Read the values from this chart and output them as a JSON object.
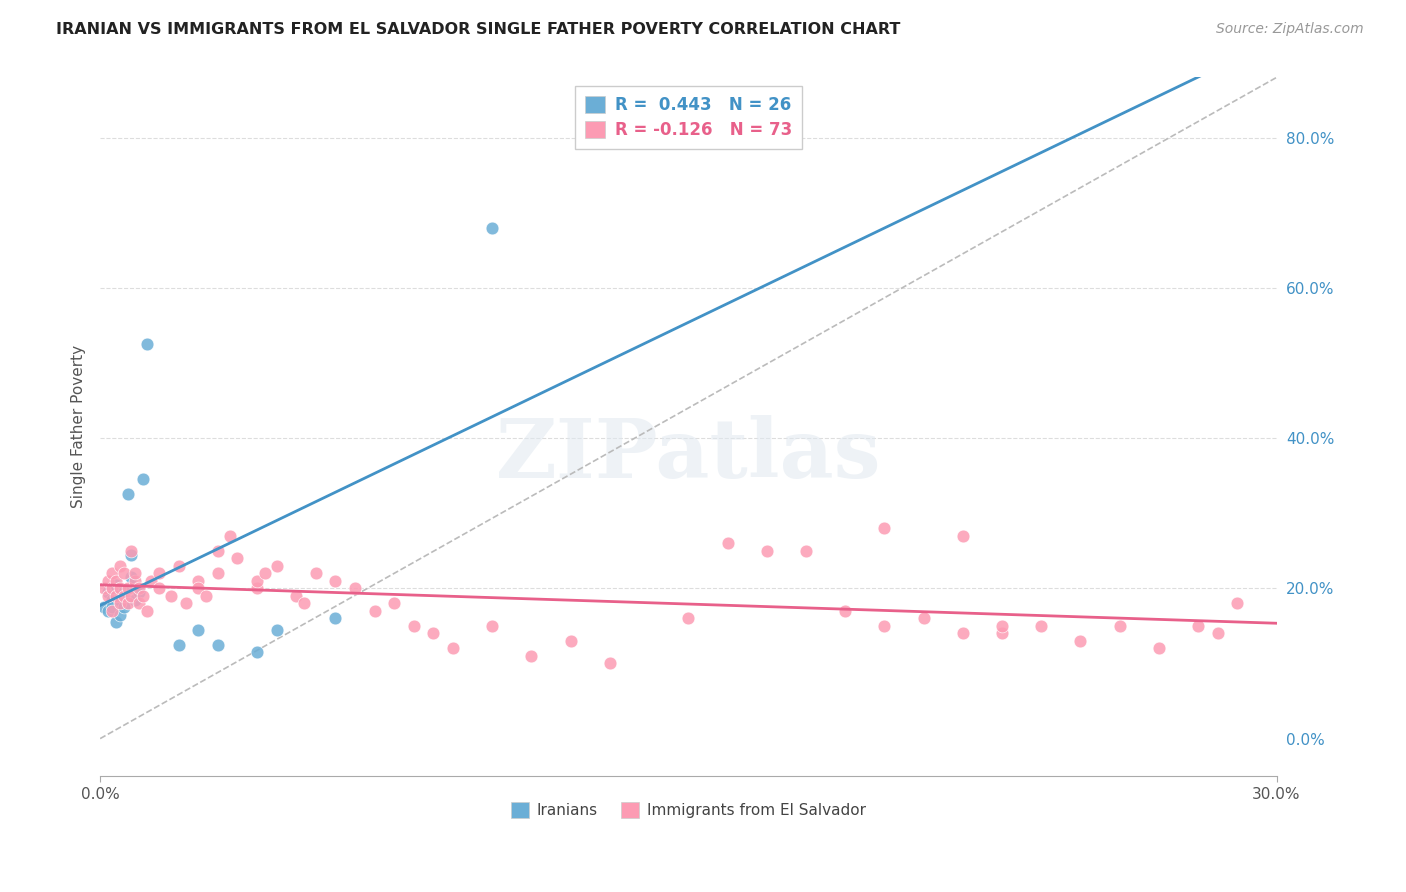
{
  "title": "IRANIAN VS IMMIGRANTS FROM EL SALVADOR SINGLE FATHER POVERTY CORRELATION CHART",
  "source": "Source: ZipAtlas.com",
  "ylabel": "Single Father Poverty",
  "right_ytick_vals": [
    0.0,
    0.2,
    0.4,
    0.6,
    0.8
  ],
  "legend_label1": "Iranians",
  "legend_label2": "Immigrants from El Salvador",
  "color_blue": "#6baed6",
  "color_pink": "#fc9bb3",
  "color_line_blue": "#4292c6",
  "color_line_pink": "#e8608a",
  "color_dashed": "#bbbbbb",
  "watermark_text": "ZIPatlas",
  "xmin": 0.0,
  "xmax": 0.3,
  "ymin": -0.05,
  "ymax": 0.88,
  "iranians_x": [
    0.001,
    0.002,
    0.002,
    0.003,
    0.003,
    0.004,
    0.004,
    0.005,
    0.005,
    0.005,
    0.006,
    0.006,
    0.007,
    0.008,
    0.008,
    0.009,
    0.01,
    0.011,
    0.012,
    0.02,
    0.025,
    0.03,
    0.04,
    0.045,
    0.06,
    0.1
  ],
  "iranians_y": [
    0.175,
    0.195,
    0.17,
    0.185,
    0.175,
    0.205,
    0.155,
    0.18,
    0.185,
    0.165,
    0.195,
    0.175,
    0.325,
    0.245,
    0.215,
    0.185,
    0.195,
    0.345,
    0.525,
    0.125,
    0.145,
    0.125,
    0.115,
    0.145,
    0.16,
    0.68
  ],
  "salvador_x": [
    0.001,
    0.002,
    0.002,
    0.003,
    0.003,
    0.003,
    0.004,
    0.004,
    0.005,
    0.005,
    0.005,
    0.006,
    0.006,
    0.007,
    0.007,
    0.008,
    0.008,
    0.009,
    0.009,
    0.01,
    0.01,
    0.011,
    0.012,
    0.013,
    0.015,
    0.015,
    0.018,
    0.02,
    0.022,
    0.025,
    0.025,
    0.027,
    0.03,
    0.03,
    0.033,
    0.035,
    0.04,
    0.04,
    0.042,
    0.045,
    0.05,
    0.052,
    0.055,
    0.06,
    0.065,
    0.07,
    0.075,
    0.08,
    0.085,
    0.09,
    0.1,
    0.11,
    0.12,
    0.13,
    0.15,
    0.16,
    0.17,
    0.18,
    0.19,
    0.2,
    0.21,
    0.22,
    0.23,
    0.24,
    0.25,
    0.26,
    0.27,
    0.28,
    0.285,
    0.2,
    0.22,
    0.23,
    0.29
  ],
  "salvador_y": [
    0.2,
    0.19,
    0.21,
    0.2,
    0.17,
    0.22,
    0.19,
    0.21,
    0.18,
    0.2,
    0.23,
    0.19,
    0.22,
    0.2,
    0.18,
    0.25,
    0.19,
    0.21,
    0.22,
    0.2,
    0.18,
    0.19,
    0.17,
    0.21,
    0.22,
    0.2,
    0.19,
    0.23,
    0.18,
    0.21,
    0.2,
    0.19,
    0.25,
    0.22,
    0.27,
    0.24,
    0.2,
    0.21,
    0.22,
    0.23,
    0.19,
    0.18,
    0.22,
    0.21,
    0.2,
    0.17,
    0.18,
    0.15,
    0.14,
    0.12,
    0.15,
    0.11,
    0.13,
    0.1,
    0.16,
    0.26,
    0.25,
    0.25,
    0.17,
    0.15,
    0.16,
    0.14,
    0.14,
    0.15,
    0.13,
    0.15,
    0.12,
    0.15,
    0.14,
    0.28,
    0.27,
    0.15,
    0.18
  ]
}
